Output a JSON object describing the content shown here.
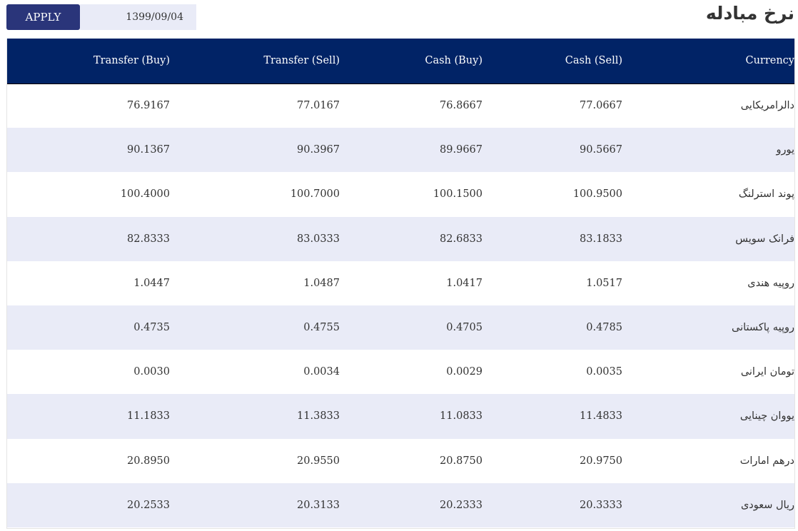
{
  "header": {
    "title": "نرخ مبادله",
    "apply_label": "APPLY",
    "date_value": "1399/09/04"
  },
  "table": {
    "columns": {
      "transfer_buy": "Transfer (Buy)",
      "transfer_sell": "Transfer (Sell)",
      "cash_buy": "Cash (Buy)",
      "cash_sell": "Cash (Sell)",
      "currency": "Currency"
    },
    "rows": [
      {
        "currency": "دالرامریکایی",
        "transfer_buy": "76.9167",
        "transfer_sell": "77.0167",
        "cash_buy": "76.8667",
        "cash_sell": "77.0667"
      },
      {
        "currency": "یورو",
        "transfer_buy": "90.1367",
        "transfer_sell": "90.3967",
        "cash_buy": "89.9667",
        "cash_sell": "90.5667"
      },
      {
        "currency": "پوند استرلنگ",
        "transfer_buy": "100.4000",
        "transfer_sell": "100.7000",
        "cash_buy": "100.1500",
        "cash_sell": "100.9500"
      },
      {
        "currency": "فرانک سویس",
        "transfer_buy": "82.8333",
        "transfer_sell": "83.0333",
        "cash_buy": "82.6833",
        "cash_sell": "83.1833"
      },
      {
        "currency": "روپیه هندی",
        "transfer_buy": "1.0447",
        "transfer_sell": "1.0487",
        "cash_buy": "1.0417",
        "cash_sell": "1.0517"
      },
      {
        "currency": "روپیه پاکستانی",
        "transfer_buy": "0.4735",
        "transfer_sell": "0.4755",
        "cash_buy": "0.4705",
        "cash_sell": "0.4785"
      },
      {
        "currency": "تومان ایرانی",
        "transfer_buy": "0.0030",
        "transfer_sell": "0.0034",
        "cash_buy": "0.0029",
        "cash_sell": "0.0035"
      },
      {
        "currency": "یووان چینایی",
        "transfer_buy": "11.1833",
        "transfer_sell": "11.3833",
        "cash_buy": "11.0833",
        "cash_sell": "11.4833"
      },
      {
        "currency": "درهم امارات",
        "transfer_buy": "20.8950",
        "transfer_sell": "20.9550",
        "cash_buy": "20.8750",
        "cash_sell": "20.9750"
      },
      {
        "currency": "ریال سعودی",
        "transfer_buy": "20.2533",
        "transfer_sell": "20.3133",
        "cash_buy": "20.2333",
        "cash_sell": "20.3333"
      }
    ]
  },
  "colors": {
    "header_bg": "#012366",
    "apply_bg": "#2a357a",
    "stripe_bg": "#e9ebf7"
  }
}
